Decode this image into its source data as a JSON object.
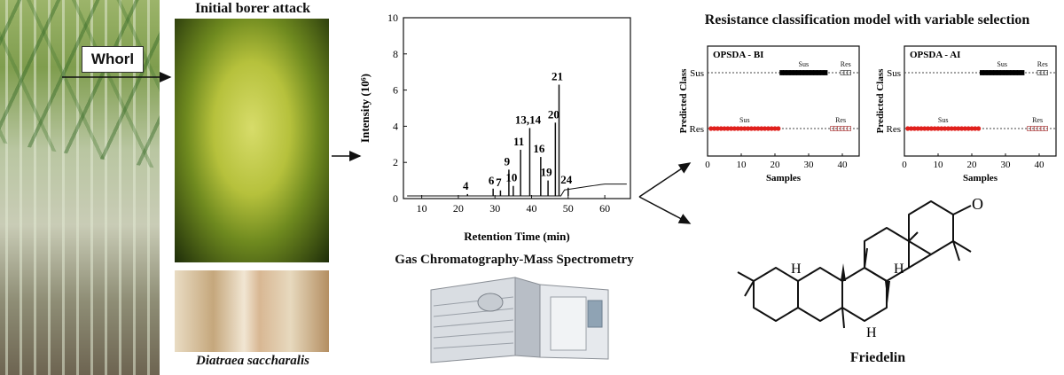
{
  "labels": {
    "whorl": "Whorl",
    "initial_attack": "Initial borer attack",
    "species": "Diatraea saccharalis",
    "gcms": "Gas Chromatography-Mass Spectrometry",
    "model_title": "Resistance classification model with variable selection",
    "compound": "Friedelin"
  },
  "chart_data": [
    {
      "type": "line",
      "xlabel": "Retention Time (min)",
      "ylabel": "Intensity (10⁶)",
      "xlim": [
        5,
        67
      ],
      "ylim": [
        0,
        10
      ],
      "xticks": [
        10,
        20,
        30,
        40,
        50,
        60
      ],
      "yticks": [
        0,
        2,
        4,
        6,
        8,
        10
      ],
      "peaks": [
        {
          "x": 22.5,
          "y": 0.25,
          "label": "4"
        },
        {
          "x": 29.5,
          "y": 0.55,
          "label": "6"
        },
        {
          "x": 31.5,
          "y": 0.45,
          "label": "7"
        },
        {
          "x": 33.8,
          "y": 1.6,
          "label": "9"
        },
        {
          "x": 35.0,
          "y": 0.7,
          "label": "10"
        },
        {
          "x": 37.0,
          "y": 2.7,
          "label": "11"
        },
        {
          "x": 39.5,
          "y": 3.9,
          "label": "13,14"
        },
        {
          "x": 42.5,
          "y": 2.3,
          "label": "16"
        },
        {
          "x": 44.5,
          "y": 1.0,
          "label": "19"
        },
        {
          "x": 46.5,
          "y": 4.2,
          "label": "20"
        },
        {
          "x": 47.5,
          "y": 6.3,
          "label": "21"
        },
        {
          "x": 50.0,
          "y": 0.6,
          "label": "24"
        }
      ]
    },
    {
      "type": "scatter",
      "title": "OPSDA - BI",
      "xlabel": "Samples",
      "ylabel": "Predicted Class",
      "xlim": [
        0,
        45
      ],
      "xticks": [
        0,
        10,
        20,
        30,
        40
      ],
      "categories": [
        "Res",
        "Sus"
      ],
      "series": [
        {
          "name": "Res",
          "class": "Res",
          "x_range": [
            1,
            21
          ],
          "color": "#e0201c"
        },
        {
          "name": "Sus",
          "class": "Sus",
          "x_range": [
            22,
            35
          ],
          "color": "#000000"
        },
        {
          "name": "Res",
          "class": "Res",
          "x_range": [
            37,
            42
          ],
          "color": "#b55555",
          "style": "open"
        },
        {
          "name": "Sus",
          "class": "Sus",
          "x_range": [
            40,
            42
          ],
          "color": "#555555",
          "style": "open"
        }
      ],
      "annotations": [
        "Sus",
        "Sus",
        "Res",
        "Res"
      ]
    },
    {
      "type": "scatter",
      "title": "OPSDA - AI",
      "xlabel": "Samples",
      "ylabel": "Predicted Class",
      "xlim": [
        0,
        45
      ],
      "xticks": [
        0,
        10,
        20,
        30,
        40
      ],
      "categories": [
        "Res",
        "Sus"
      ],
      "series": [
        {
          "name": "Res",
          "class": "Res",
          "x_range": [
            1,
            22
          ],
          "color": "#e0201c"
        },
        {
          "name": "Sus",
          "class": "Sus",
          "x_range": [
            23,
            35
          ],
          "color": "#000000"
        },
        {
          "name": "Res",
          "class": "Res",
          "x_range": [
            37,
            42
          ],
          "color": "#b55555",
          "style": "open"
        },
        {
          "name": "Sus",
          "class": "Sus",
          "x_range": [
            40,
            42
          ],
          "color": "#555555",
          "style": "open"
        }
      ],
      "annotations": [
        "Sus",
        "Sus",
        "Res",
        "Res"
      ]
    }
  ],
  "molecule": {
    "atoms": [
      "H",
      "H",
      "H",
      "O"
    ]
  }
}
